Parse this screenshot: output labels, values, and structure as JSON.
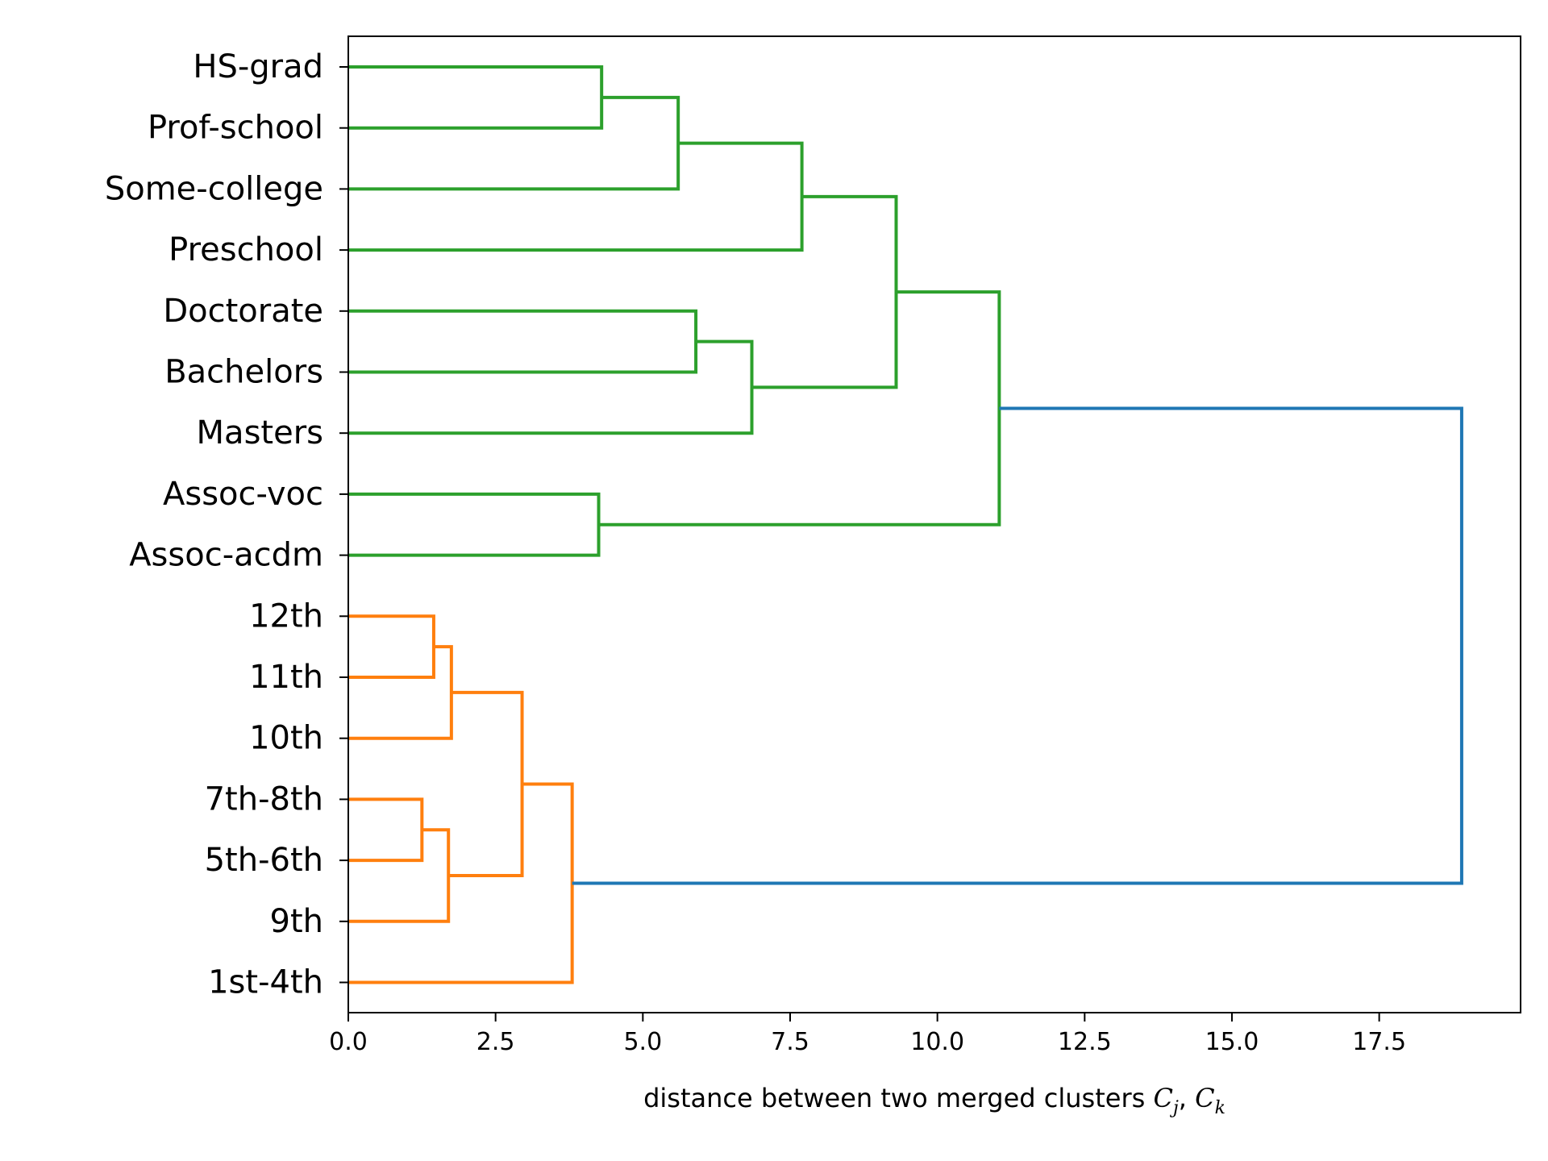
{
  "chart_data": {
    "type": "dendrogram",
    "orientation": "horizontal",
    "leaves": [
      "HS-grad",
      "Prof-school",
      "Some-college",
      "Preschool",
      "Doctorate",
      "Bachelors",
      "Masters",
      "Assoc-voc",
      "Assoc-acdm",
      "12th",
      "11th",
      "10th",
      "7th-8th",
      "5th-6th",
      "9th",
      "1st-4th"
    ],
    "merges": [
      {
        "a": "HS-grad",
        "b": "Prof-school",
        "distance": 4.3,
        "color": "#2ca02c"
      },
      {
        "a": "HS-grad+Prof-school",
        "b": "Some-college",
        "distance": 5.6,
        "color": "#2ca02c"
      },
      {
        "a": "HS-grad+Prof-school+Some-college",
        "b": "Preschool",
        "distance": 7.7,
        "color": "#2ca02c"
      },
      {
        "a": "Doctorate",
        "b": "Bachelors",
        "distance": 5.9,
        "color": "#2ca02c"
      },
      {
        "a": "Doctorate+Bachelors",
        "b": "Masters",
        "distance": 6.85,
        "color": "#2ca02c"
      },
      {
        "a": "HS-grad..Preschool",
        "b": "Doctorate..Masters",
        "distance": 9.3,
        "color": "#2ca02c"
      },
      {
        "a": "Assoc-voc",
        "b": "Assoc-acdm",
        "distance": 4.25,
        "color": "#2ca02c"
      },
      {
        "a": "HS-grad..Masters",
        "b": "Assoc-voc+Assoc-acdm",
        "distance": 11.05,
        "color": "#2ca02c"
      },
      {
        "a": "12th",
        "b": "11th",
        "distance": 1.45,
        "color": "#ff7f0e"
      },
      {
        "a": "12th+11th",
        "b": "10th",
        "distance": 1.75,
        "color": "#ff7f0e"
      },
      {
        "a": "7th-8th",
        "b": "5th-6th",
        "distance": 1.25,
        "color": "#ff7f0e"
      },
      {
        "a": "7th-8th+5th-6th",
        "b": "9th",
        "distance": 1.7,
        "color": "#ff7f0e"
      },
      {
        "a": "12th..10th",
        "b": "7th-8th..9th",
        "distance": 2.95,
        "color": "#ff7f0e"
      },
      {
        "a": "12th..9th",
        "b": "1st-4th",
        "distance": 3.8,
        "color": "#ff7f0e"
      },
      {
        "a": "HS-grad..Assoc-acdm",
        "b": "12th..1st-4th",
        "distance": 18.9,
        "color": "#1f77b4"
      }
    ],
    "xlim": [
      0,
      19.9
    ],
    "x_ticks": [
      "0.0",
      "2.5",
      "5.0",
      "7.5",
      "10.0",
      "12.5",
      "15.0",
      "17.5"
    ],
    "x_tick_values": [
      0,
      2.5,
      5,
      7.5,
      10,
      12.5,
      15,
      17.5
    ],
    "xlabel_prefix": "distance between two merged clusters ",
    "xlabel_math": [
      "C",
      "j",
      ", ",
      "C",
      "k"
    ],
    "grid": false,
    "colors": {
      "cluster_1": "#2ca02c",
      "cluster_2": "#ff7f0e",
      "above_threshold": "#1f77b4",
      "axes": "#000000"
    }
  }
}
